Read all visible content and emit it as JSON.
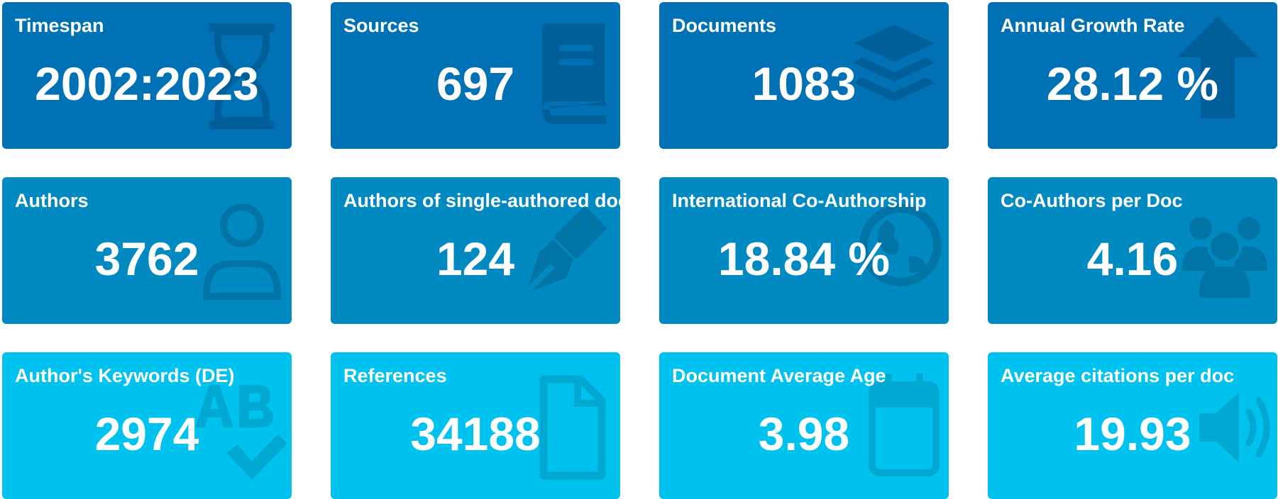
{
  "cards": [
    {
      "title": "Timespan",
      "value": "2002:2023",
      "icon": "hourglass-icon"
    },
    {
      "title": "Sources",
      "value": "697",
      "icon": "book-icon"
    },
    {
      "title": "Documents",
      "value": "1083",
      "icon": "layers-icon"
    },
    {
      "title": "Annual Growth Rate",
      "value": "28.12 %",
      "icon": "arrow-up-icon"
    },
    {
      "title": "Authors",
      "value": "3762",
      "icon": "user-icon"
    },
    {
      "title": "Authors of single-authored docs",
      "value": "124",
      "icon": "pen-nib-icon"
    },
    {
      "title": "International Co-Authorship",
      "value": "18.84 %",
      "icon": "globe-icon"
    },
    {
      "title": "Co-Authors per Doc",
      "value": "4.16",
      "icon": "users-icon"
    },
    {
      "title": "Author's Keywords (DE)",
      "value": "2974",
      "icon": "spell-check-icon"
    },
    {
      "title": "References",
      "value": "34188",
      "icon": "file-icon"
    },
    {
      "title": "Document Average Age",
      "value": "3.98",
      "icon": "calendar-icon"
    },
    {
      "title": "Average citations per doc",
      "value": "19.93",
      "icon": "volume-icon"
    }
  ],
  "colors": {
    "row_1": "#0071b5",
    "row_2": "#0189c2",
    "row_3": "#00c2ee",
    "text": "#ffffff"
  }
}
